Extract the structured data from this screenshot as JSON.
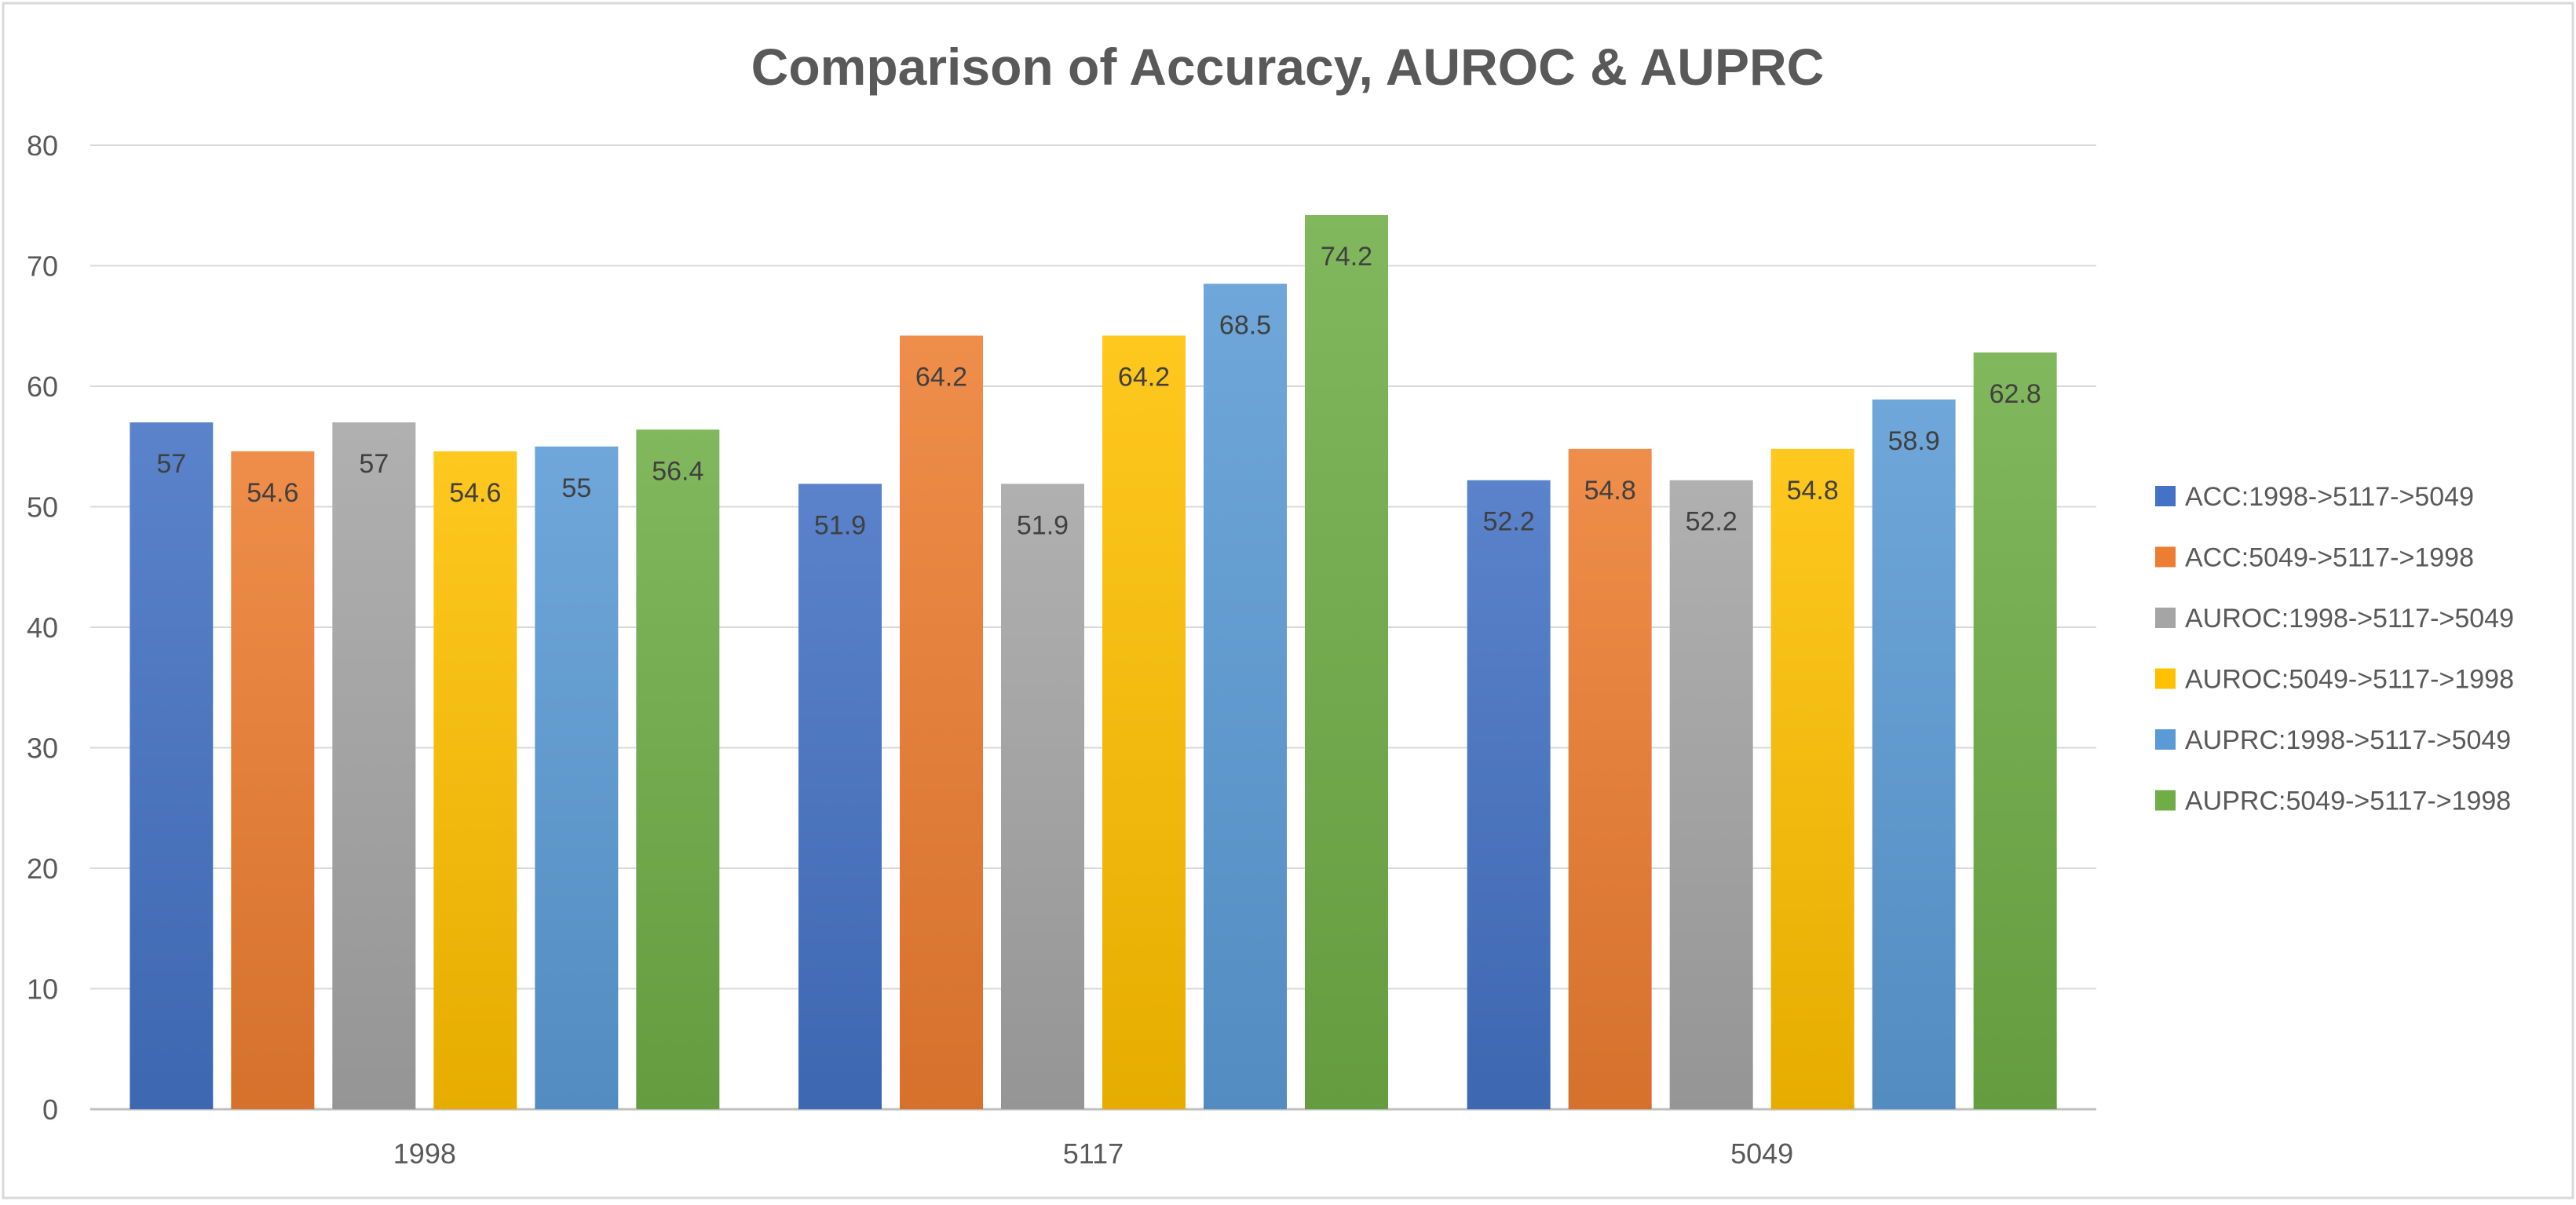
{
  "chart_data": {
    "type": "bar",
    "title": "Comparison of Accuracy, AUROC & AUPRC",
    "xlabel": "",
    "ylabel": "",
    "categories": [
      "1998",
      "5117",
      "5049"
    ],
    "ylim": [
      0,
      80
    ],
    "yticks": [
      "0",
      "10",
      "20",
      "30",
      "40",
      "50",
      "60",
      "70",
      "80"
    ],
    "grid": true,
    "legend_position": "right",
    "series": [
      {
        "name": "ACC:1998->5117->5049",
        "values": [
          57,
          51.9,
          52.2
        ],
        "labels": [
          "57",
          "51.9",
          "52.2"
        ],
        "color": "#4472C4"
      },
      {
        "name": "ACC:5049->5117->1998",
        "values": [
          54.6,
          64.2,
          54.8
        ],
        "labels": [
          "54.6",
          "64.2",
          "54.8"
        ],
        "color": "#ED7D31"
      },
      {
        "name": "AUROC:1998->5117->5049",
        "values": [
          57,
          51.9,
          52.2
        ],
        "labels": [
          "57",
          "51.9",
          "52.2"
        ],
        "color": "#A5A5A5"
      },
      {
        "name": "AUROC:5049->5117->1998",
        "values": [
          54.6,
          64.2,
          54.8
        ],
        "labels": [
          "54.6",
          "64.2",
          "54.8"
        ],
        "color": "#FFC000"
      },
      {
        "name": "AUPRC:1998->5117->5049",
        "values": [
          55,
          68.5,
          58.9
        ],
        "labels": [
          "55",
          "68.5",
          "58.9"
        ],
        "color": "#5B9BD5"
      },
      {
        "name": "AUPRC:5049->5117->1998",
        "values": [
          56.4,
          74.2,
          62.8
        ],
        "labels": [
          "56.4",
          "74.2",
          "62.8"
        ],
        "color": "#70AD47"
      }
    ]
  }
}
